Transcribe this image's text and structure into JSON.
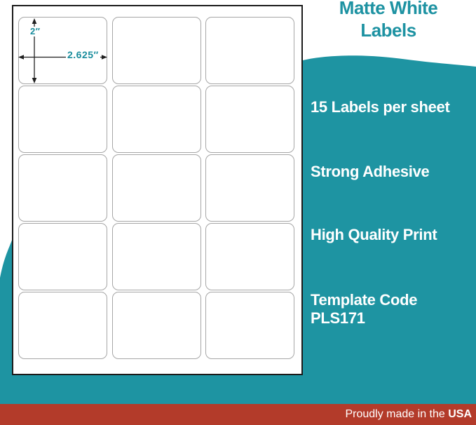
{
  "theme": {
    "teal": "#1E94A2",
    "heading_teal": "#1D92A2",
    "red": "#B33B2A",
    "text_on_teal": "#FFFFFF",
    "sheet_border": "#1B1B1B",
    "cell_border": "#A6A6A6"
  },
  "heading": {
    "title": "Matte White Labels"
  },
  "sheet": {
    "rows": 5,
    "columns": 3,
    "labels_total": 15,
    "height_dimension": "2″",
    "width_dimension": "2.625″"
  },
  "features": [
    "15 Labels per sheet",
    "Strong Adhesive",
    "High Quality Print",
    "Template Code PLS171"
  ],
  "footer": {
    "text": "Proudly made in the ",
    "country": "USA"
  }
}
